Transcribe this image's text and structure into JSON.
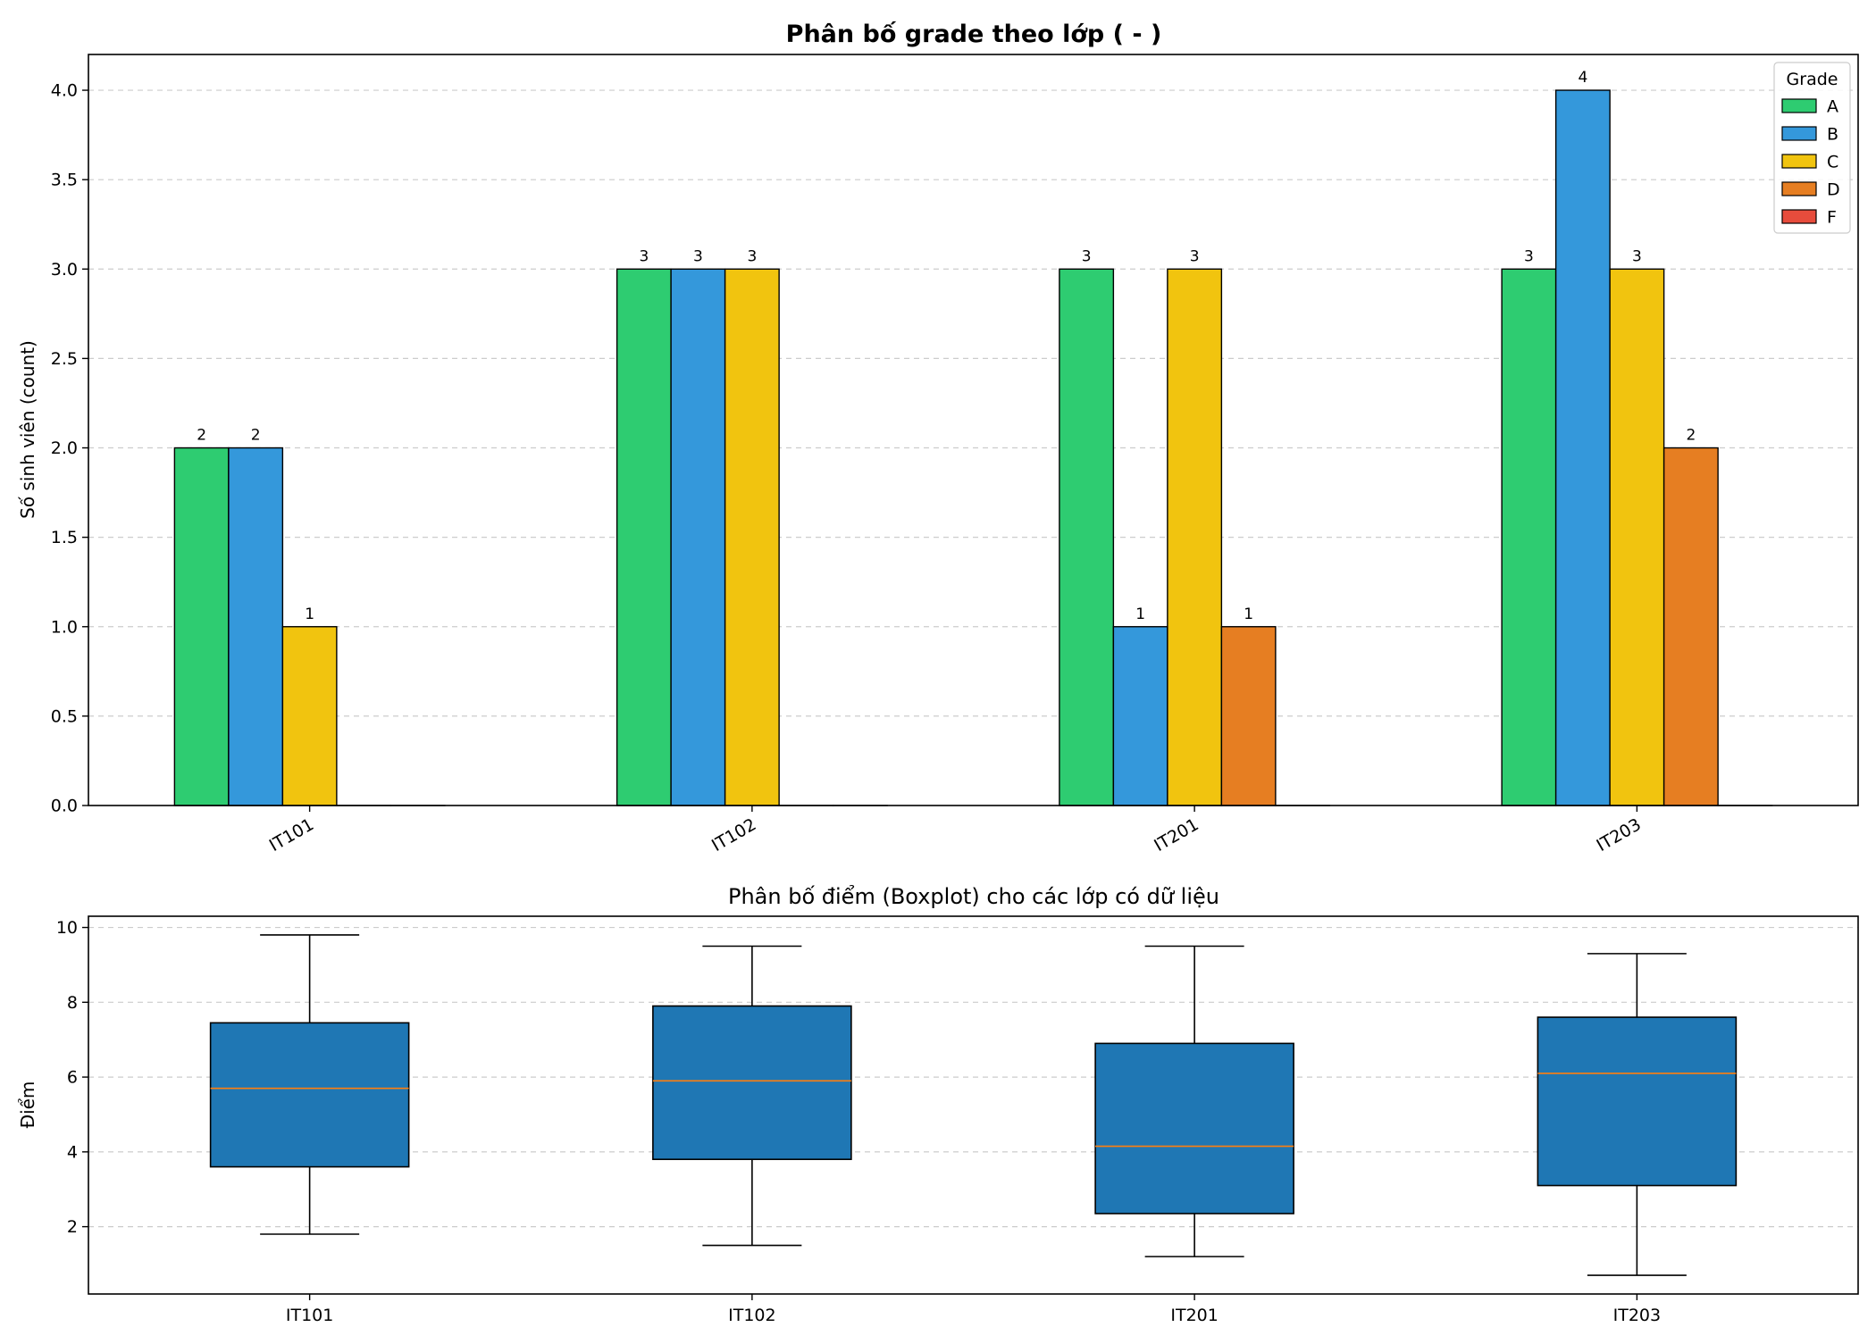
{
  "chart_data": [
    {
      "type": "bar",
      "title": "Phân bố grade theo lớp ( - )",
      "ylabel": "Số sinh viên (count)",
      "xlabel": "",
      "categories": [
        "IT101",
        "IT102",
        "IT201",
        "IT203"
      ],
      "ylim": [
        0,
        4.2
      ],
      "yticks": [
        "0.0",
        "0.5",
        "1.0",
        "1.5",
        "2.0",
        "2.5",
        "3.0",
        "3.5",
        "4.0"
      ],
      "grid": true,
      "legend": {
        "title": "Grade",
        "position": "top-right"
      },
      "series": [
        {
          "name": "A",
          "color": "#2ecc71",
          "values": [
            2,
            3,
            3,
            3
          ]
        },
        {
          "name": "B",
          "color": "#3498db",
          "values": [
            2,
            3,
            1,
            4
          ]
        },
        {
          "name": "C",
          "color": "#f1c40f",
          "values": [
            1,
            3,
            3,
            3
          ]
        },
        {
          "name": "D",
          "color": "#e67e22",
          "values": [
            0,
            0,
            1,
            2
          ]
        },
        {
          "name": "F",
          "color": "#e74c3c",
          "values": [
            0,
            0,
            0,
            0
          ]
        }
      ],
      "data_labels": [
        [
          "2",
          "2",
          "1",
          "",
          ""
        ],
        [
          "3",
          "3",
          "3",
          "",
          ""
        ],
        [
          "3",
          "1",
          "3",
          "1",
          ""
        ],
        [
          "3",
          "4",
          "3",
          "2",
          ""
        ]
      ]
    },
    {
      "type": "boxplot",
      "title": "Phân bố điểm (Boxplot) cho các lớp có dữ liệu",
      "ylabel": "Điểm",
      "xlabel": "",
      "categories": [
        "IT101",
        "IT102",
        "IT201",
        "IT203"
      ],
      "ylim": [
        0.2,
        10.3
      ],
      "yticks": [
        "2",
        "4",
        "6",
        "8",
        "10"
      ],
      "grid": true,
      "box_color": "#1f77b4",
      "median_color": "#ff7f0e",
      "boxes": [
        {
          "whislo": 1.8,
          "q1": 3.6,
          "med": 5.7,
          "q3": 7.45,
          "whishi": 9.8
        },
        {
          "whislo": 1.5,
          "q1": 3.8,
          "med": 5.9,
          "q3": 7.9,
          "whishi": 9.5
        },
        {
          "whislo": 1.2,
          "q1": 2.35,
          "med": 4.15,
          "q3": 6.9,
          "whishi": 9.5
        },
        {
          "whislo": 0.7,
          "q1": 3.1,
          "med": 6.1,
          "q3": 7.6,
          "whishi": 9.3
        }
      ]
    }
  ]
}
